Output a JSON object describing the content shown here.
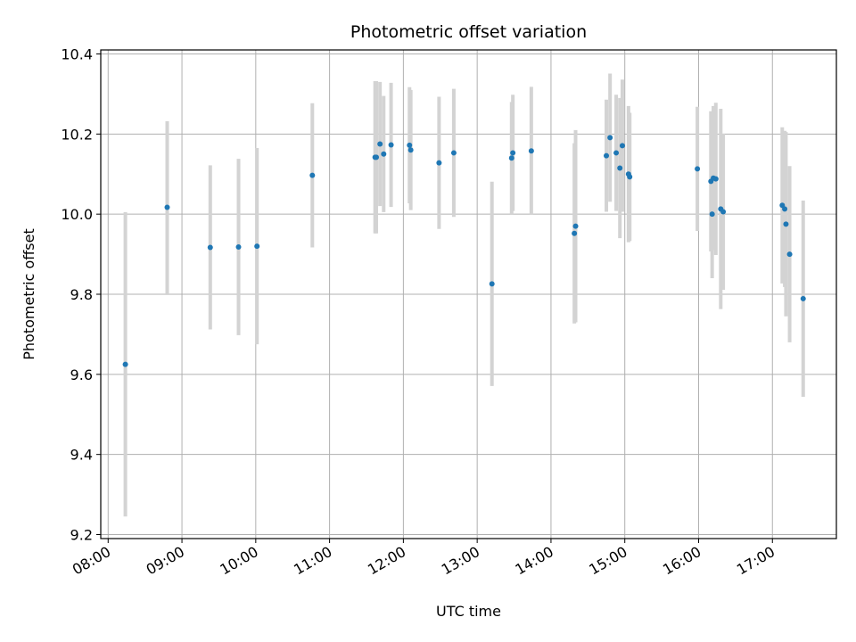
{
  "chart_data": {
    "type": "scatter",
    "title": "Photometric offset variation",
    "xlabel": "UTC time",
    "ylabel": "Photometric offset",
    "x_ticks": [
      "08:00",
      "09:00",
      "10:00",
      "11:00",
      "12:00",
      "13:00",
      "14:00",
      "15:00",
      "16:00",
      "17:00"
    ],
    "y_ticks": [
      "9.2",
      "9.4",
      "9.6",
      "9.8",
      "10.0",
      "10.2",
      "10.4"
    ],
    "xlim": [
      "07:54",
      "17:52"
    ],
    "ylim": [
      9.19,
      10.41
    ],
    "grid": true,
    "colors": {
      "point": "#1f77b4",
      "errorbar": "#d3d3d3",
      "grid": "#b0b0b0"
    },
    "points": [
      {
        "x": "08:14",
        "y": 9.625,
        "err": 0.38
      },
      {
        "x": "08:48",
        "y": 10.017,
        "err": 0.215
      },
      {
        "x": "09:23",
        "y": 9.917,
        "err": 0.205
      },
      {
        "x": "09:46",
        "y": 9.918,
        "err": 0.22
      },
      {
        "x": "10:01",
        "y": 9.92,
        "err": 0.245
      },
      {
        "x": "10:46",
        "y": 10.097,
        "err": 0.18
      },
      {
        "x": "11:37",
        "y": 10.142,
        "err": 0.19
      },
      {
        "x": "11:38",
        "y": 10.142,
        "err": 0.19
      },
      {
        "x": "11:41",
        "y": 10.175,
        "err": 0.155
      },
      {
        "x": "11:44",
        "y": 10.15,
        "err": 0.145
      },
      {
        "x": "11:50",
        "y": 10.173,
        "err": 0.155
      },
      {
        "x": "12:05",
        "y": 10.172,
        "err": 0.145
      },
      {
        "x": "12:06",
        "y": 10.16,
        "err": 0.15
      },
      {
        "x": "12:29",
        "y": 10.128,
        "err": 0.165
      },
      {
        "x": "12:41",
        "y": 10.153,
        "err": 0.16
      },
      {
        "x": "13:12",
        "y": 9.826,
        "err": 0.255
      },
      {
        "x": "13:28",
        "y": 10.14,
        "err": 0.14
      },
      {
        "x": "13:29",
        "y": 10.153,
        "err": 0.145
      },
      {
        "x": "13:44",
        "y": 10.158,
        "err": 0.16
      },
      {
        "x": "14:19",
        "y": 9.952,
        "err": 0.225
      },
      {
        "x": "14:20",
        "y": 9.97,
        "err": 0.24
      },
      {
        "x": "14:45",
        "y": 10.146,
        "err": 0.14
      },
      {
        "x": "14:48",
        "y": 10.191,
        "err": 0.16
      },
      {
        "x": "14:53",
        "y": 10.153,
        "err": 0.145
      },
      {
        "x": "14:56",
        "y": 10.115,
        "err": 0.175
      },
      {
        "x": "14:58",
        "y": 10.171,
        "err": 0.165
      },
      {
        "x": "15:03",
        "y": 10.1,
        "err": 0.17
      },
      {
        "x": "15:04",
        "y": 10.093,
        "err": 0.16
      },
      {
        "x": "15:59",
        "y": 10.113,
        "err": 0.155
      },
      {
        "x": "16:10",
        "y": 10.082,
        "err": 0.175
      },
      {
        "x": "16:11",
        "y": 10.0,
        "err": 0.16
      },
      {
        "x": "16:12",
        "y": 10.09,
        "err": 0.18
      },
      {
        "x": "16:14",
        "y": 10.088,
        "err": 0.19
      },
      {
        "x": "16:18",
        "y": 10.013,
        "err": 0.25
      },
      {
        "x": "16:20",
        "y": 10.006,
        "err": 0.195
      },
      {
        "x": "17:08",
        "y": 10.022,
        "err": 0.195
      },
      {
        "x": "17:10",
        "y": 10.013,
        "err": 0.195
      },
      {
        "x": "17:11",
        "y": 9.975,
        "err": 0.23
      },
      {
        "x": "17:14",
        "y": 9.9,
        "err": 0.22
      },
      {
        "x": "17:25",
        "y": 9.789,
        "err": 0.245
      }
    ]
  }
}
